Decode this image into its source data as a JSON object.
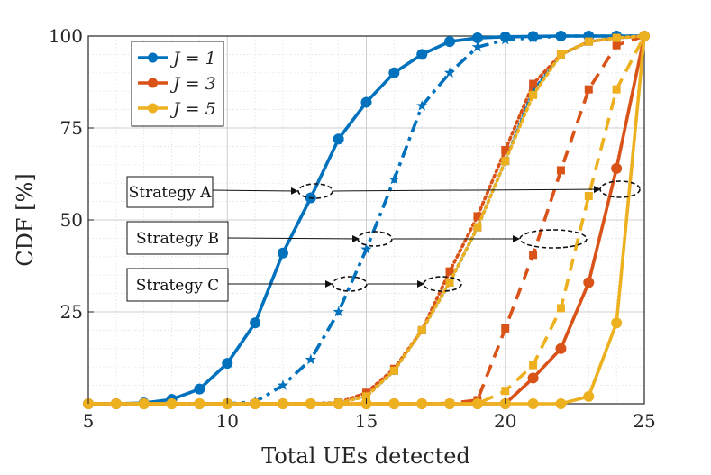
{
  "chart_data": {
    "type": "line",
    "title": "",
    "xlabel": "Total UEs detected",
    "ylabel": "CDF [%]",
    "xlim": [
      5,
      25
    ],
    "ylim": [
      0,
      100
    ],
    "xticks": [
      5,
      10,
      15,
      20,
      25
    ],
    "yticks": [
      25,
      50,
      75,
      100
    ],
    "grid": true,
    "minor_grid": true,
    "legend_position": "top-left",
    "legend": [
      {
        "label": "J = 1",
        "color": "#0072BD"
      },
      {
        "label": "J = 3",
        "color": "#D95319"
      },
      {
        "label": "J = 5",
        "color": "#EDB120"
      }
    ],
    "annotations": [
      "Strategy A",
      "Strategy B",
      "Strategy C"
    ],
    "series": [
      {
        "J": 1,
        "strategy": "A",
        "color": "#0072BD",
        "dash": "solid",
        "marker": "circle",
        "x": [
          5,
          6,
          7,
          8,
          9,
          10,
          11,
          12,
          13,
          14,
          15,
          16,
          17,
          18,
          19,
          20,
          21,
          22,
          23,
          24,
          25
        ],
        "y": [
          0,
          0,
          0.2,
          1.2,
          4,
          11,
          22,
          41,
          56,
          72,
          82,
          90,
          95,
          98.5,
          99.5,
          99.8,
          99.9,
          100,
          100,
          100,
          100
        ]
      },
      {
        "J": 1,
        "strategy": "B",
        "color": "#0072BD",
        "dash": "dashdot",
        "marker": "star",
        "x": [
          5,
          6,
          7,
          8,
          9,
          10,
          11,
          12,
          13,
          14,
          15,
          16,
          17,
          18,
          19,
          20,
          21,
          22,
          23,
          24,
          25
        ],
        "y": [
          0,
          0,
          0,
          0,
          0,
          0,
          0.5,
          5,
          12,
          25,
          42,
          61,
          81,
          90,
          97,
          99,
          99.5,
          100,
          100,
          100,
          100
        ]
      },
      {
        "J": 1,
        "strategy": "C",
        "color": "#0072BD",
        "dash": "dotted",
        "marker": "square",
        "x": [
          5,
          6,
          7,
          8,
          9,
          10,
          11,
          12,
          13,
          14,
          15,
          16,
          17,
          18,
          19,
          20,
          21,
          22,
          23,
          24,
          25
        ],
        "y": [
          0,
          0,
          0,
          0,
          0,
          0,
          0,
          0,
          0,
          0.3,
          2,
          9,
          20,
          33,
          48,
          66,
          85,
          95,
          98.5,
          99.5,
          100
        ]
      },
      {
        "J": 3,
        "strategy": "A",
        "color": "#D95319",
        "dash": "solid",
        "marker": "circle",
        "x": [
          5,
          6,
          7,
          8,
          9,
          10,
          11,
          12,
          13,
          14,
          15,
          16,
          17,
          18,
          19,
          20,
          21,
          22,
          23,
          24,
          25
        ],
        "y": [
          0,
          0,
          0,
          0,
          0,
          0,
          0,
          0,
          0,
          0,
          0,
          0,
          0,
          0,
          0,
          0,
          7,
          15,
          33,
          64,
          100
        ]
      },
      {
        "J": 3,
        "strategy": "B",
        "color": "#D95319",
        "dash": "dashed",
        "marker": "square",
        "x": [
          5,
          6,
          7,
          8,
          9,
          10,
          11,
          12,
          13,
          14,
          15,
          16,
          17,
          18,
          19,
          20,
          21,
          22,
          23,
          24,
          25
        ],
        "y": [
          0,
          0,
          0,
          0,
          0,
          0,
          0,
          0,
          0,
          0,
          0,
          0,
          0,
          0.1,
          1,
          20.5,
          40.5,
          63.5,
          85.5,
          97.5,
          100
        ]
      },
      {
        "J": 3,
        "strategy": "C",
        "color": "#D95319",
        "dash": "dotted",
        "marker": "square",
        "x": [
          5,
          6,
          7,
          8,
          9,
          10,
          11,
          12,
          13,
          14,
          15,
          16,
          17,
          18,
          19,
          20,
          21,
          22,
          23,
          24,
          25
        ],
        "y": [
          0,
          0,
          0,
          0,
          0,
          0,
          0,
          0,
          0,
          0.3,
          3,
          9.5,
          20,
          36,
          51,
          69,
          87,
          95,
          98.5,
          99.5,
          100
        ]
      },
      {
        "J": 5,
        "strategy": "A",
        "color": "#EDB120",
        "dash": "solid",
        "marker": "circle",
        "x": [
          5,
          6,
          7,
          8,
          9,
          10,
          11,
          12,
          13,
          14,
          15,
          16,
          17,
          18,
          19,
          20,
          21,
          22,
          23,
          24,
          25
        ],
        "y": [
          0,
          0,
          0,
          0,
          0,
          0,
          0,
          0,
          0,
          0,
          0,
          0,
          0,
          0,
          0,
          0,
          0,
          0,
          2,
          22,
          100
        ]
      },
      {
        "J": 5,
        "strategy": "B",
        "color": "#EDB120",
        "dash": "dashed",
        "marker": "square",
        "x": [
          5,
          6,
          7,
          8,
          9,
          10,
          11,
          12,
          13,
          14,
          15,
          16,
          17,
          18,
          19,
          20,
          21,
          22,
          23,
          24,
          25
        ],
        "y": [
          0,
          0,
          0,
          0,
          0,
          0,
          0,
          0,
          0,
          0,
          0,
          0,
          0,
          0,
          0,
          3.5,
          10.5,
          26,
          56.5,
          85.5,
          100
        ]
      },
      {
        "J": 5,
        "strategy": "C",
        "color": "#EDB120",
        "dash": "dotted",
        "marker": "square",
        "x": [
          5,
          6,
          7,
          8,
          9,
          10,
          11,
          12,
          13,
          14,
          15,
          16,
          17,
          18,
          19,
          20,
          21,
          22,
          23,
          24,
          25
        ],
        "y": [
          0,
          0,
          0,
          0,
          0,
          0,
          0,
          0,
          0,
          0.2,
          2,
          9,
          20,
          33,
          48,
          66,
          84,
          95,
          98.5,
          99.5,
          100
        ]
      }
    ]
  }
}
